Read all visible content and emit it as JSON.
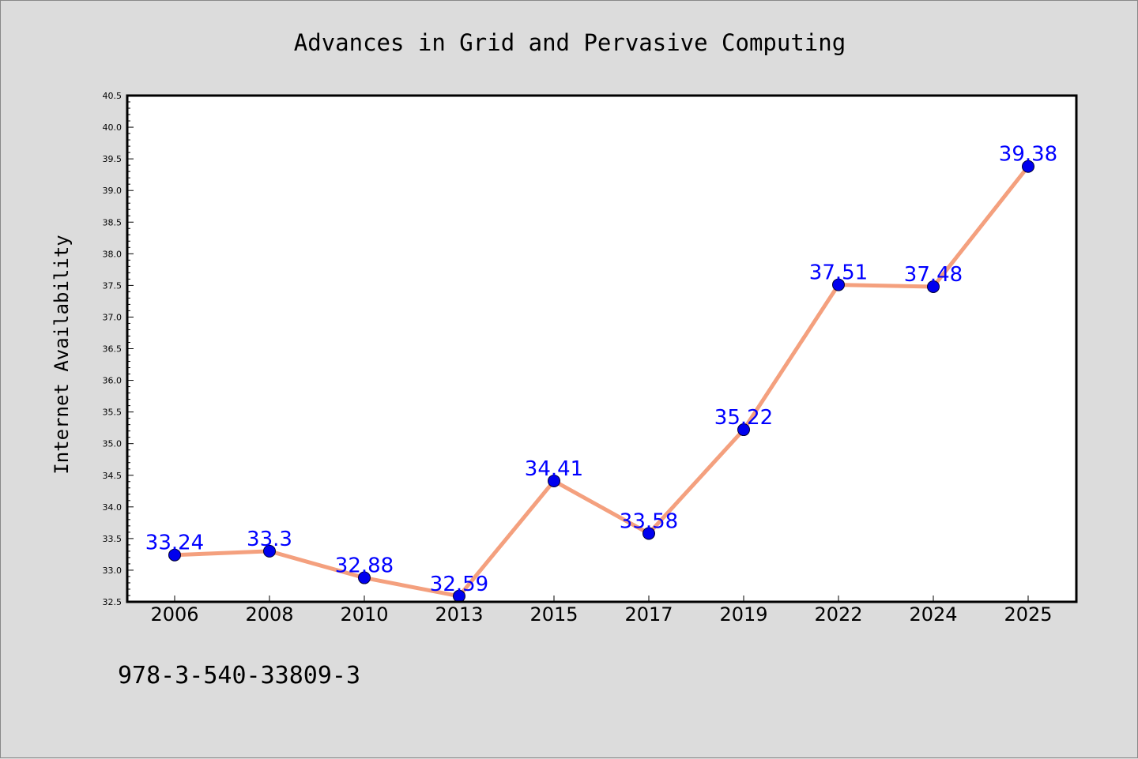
{
  "chart_data": {
    "type": "line",
    "title": "Advances in Grid and Pervasive Computing",
    "xlabel": "",
    "ylabel": "Internet Availability",
    "categories": [
      "2006",
      "2008",
      "2010",
      "2013",
      "2015",
      "2017",
      "2019",
      "2022",
      "2024",
      "2025"
    ],
    "series": [
      {
        "values": [
          33.24,
          33.3,
          32.88,
          32.59,
          34.41,
          33.58,
          35.22,
          37.51,
          37.48,
          39.38
        ],
        "data_labels": [
          "33.24",
          "33.3",
          "32.88",
          "32.59",
          "34.41",
          "33.58",
          "35.22",
          "37.51",
          "37.48",
          "39.38"
        ],
        "line_color": "#f4a07e",
        "marker_color": "#0000ee",
        "label_color": "#0000ff"
      }
    ],
    "ylim": [
      32.5,
      40.5
    ],
    "yticks": [
      "32.5",
      "33.0",
      "33.5",
      "34.0",
      "34.5",
      "35.0",
      "35.5",
      "36.0",
      "36.5",
      "37.0",
      "37.5",
      "38.0",
      "38.5",
      "39.0",
      "39.5",
      "40.0",
      "40.5"
    ],
    "grid": false,
    "legend": "none"
  },
  "footnote": "978-3-540-33809-3",
  "colors": {
    "background": "#dcdcdc",
    "plot_background": "#ffffff"
  }
}
